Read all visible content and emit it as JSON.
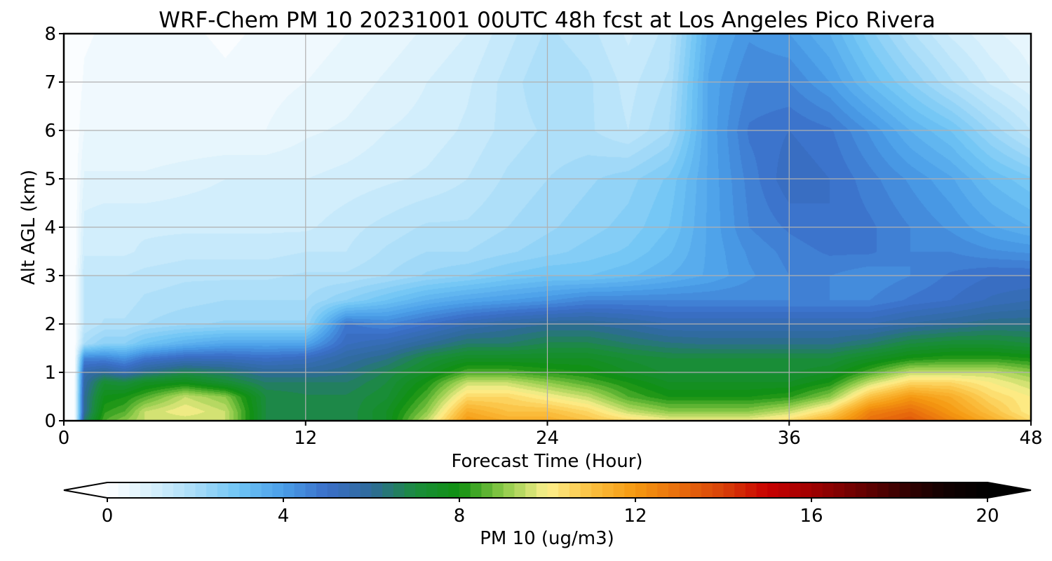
{
  "chart_data": {
    "type": "heatmap",
    "title": "WRF-Chem PM 10  20231001 00UTC 48h fcst at Los Angeles Pico Rivera",
    "xlabel": "Forecast Time (Hour)",
    "ylabel": "Alt AGL (km)",
    "xlim": [
      0,
      48
    ],
    "ylim": [
      0,
      8
    ],
    "x_ticks": [
      "0",
      "12",
      "24",
      "36",
      "48"
    ],
    "y_ticks": [
      "0",
      "1",
      "2",
      "3",
      "4",
      "5",
      "6",
      "7",
      "8"
    ],
    "grid": true,
    "colorbar": {
      "label": "PM 10  (ug/m3)",
      "ticks": [
        "0",
        "4",
        "8",
        "12",
        "16",
        "20"
      ],
      "range": [
        0,
        20
      ],
      "extend": "both",
      "orientation": "horizontal",
      "colors": {
        "0": "#ffffff",
        "1": "#d8f0fc",
        "2": "#a8dcf8",
        "3": "#6ec4f4",
        "4": "#4a9ee8",
        "5": "#3a6ec8",
        "6": "#2e6a9a",
        "7": "#1a8c3c",
        "8": "#109010",
        "9": "#8cca48",
        "10": "#fdf08c",
        "11": "#fbc040",
        "12": "#f59810",
        "13": "#e86c0c",
        "14": "#d84008",
        "15": "#c80000",
        "16": "#a00000",
        "17": "#6e0000",
        "18": "#3a0000",
        "19": "#120000",
        "20": "#000000"
      }
    },
    "hours": [
      0,
      0.5,
      1,
      2,
      3,
      4,
      6,
      8,
      10,
      12,
      14,
      16,
      18,
      20,
      22,
      24,
      26,
      28,
      30,
      32,
      34,
      36,
      38,
      40,
      42,
      44,
      46,
      48
    ],
    "altitudes_km": [
      0,
      0.2,
      0.5,
      0.8,
      1.0,
      1.3,
      1.6,
      2.0,
      2.5,
      3.0,
      3.5,
      4.0,
      5.0,
      6.0,
      7.0,
      8.0
    ],
    "values": [
      [
        0,
        0,
        6.5,
        8.5,
        9.0,
        9.5,
        9.5,
        9.5,
        7.0,
        7.0,
        6.8,
        7.5,
        9.5,
        12.0,
        11.5,
        11.5,
        11.0,
        10.5,
        10.0,
        10.0,
        10.0,
        10.5,
        11.5,
        13.0,
        13.5,
        12.5,
        11.5,
        10.5
      ],
      [
        0,
        0,
        6.0,
        8.2,
        8.5,
        9.5,
        10.0,
        9.5,
        7.0,
        6.8,
        6.8,
        7.5,
        9.0,
        11.5,
        11.0,
        11.0,
        10.5,
        9.5,
        9.0,
        9.0,
        9.0,
        9.5,
        10.5,
        12.5,
        13.0,
        12.0,
        11.0,
        10.0
      ],
      [
        0,
        0,
        6.0,
        7.8,
        8.0,
        8.5,
        9.5,
        9.0,
        7.0,
        6.8,
        6.8,
        7.2,
        8.5,
        10.5,
        10.5,
        10.0,
        9.5,
        8.5,
        8.0,
        8.0,
        8.0,
        8.2,
        9.0,
        11.0,
        12.0,
        11.5,
        10.5,
        10.0
      ],
      [
        0,
        0,
        5.8,
        7.2,
        7.0,
        7.5,
        7.8,
        7.2,
        6.5,
        6.5,
        6.5,
        7.0,
        8.0,
        9.5,
        9.5,
        9.0,
        8.5,
        8.0,
        7.5,
        7.5,
        7.5,
        7.5,
        8.0,
        9.5,
        10.5,
        10.5,
        10.0,
        9.5
      ],
      [
        0,
        0,
        5.6,
        6.0,
        5.6,
        6.2,
        6.8,
        6.5,
        6.0,
        6.0,
        6.2,
        6.8,
        7.5,
        8.5,
        8.5,
        8.2,
        8.0,
        7.5,
        7.2,
        7.2,
        7.2,
        7.2,
        7.5,
        8.5,
        9.5,
        9.5,
        9.5,
        9.0
      ],
      [
        0,
        0,
        4.5,
        4.5,
        4.2,
        4.8,
        5.2,
        5.2,
        5.0,
        5.2,
        5.8,
        6.2,
        7.0,
        7.5,
        7.5,
        7.5,
        7.5,
        7.2,
        7.0,
        7.0,
        7.0,
        7.0,
        7.0,
        7.5,
        8.0,
        8.2,
        8.2,
        8.0
      ],
      [
        0,
        0,
        2.0,
        2.5,
        2.5,
        3.0,
        3.5,
        3.8,
        3.8,
        3.8,
        5.2,
        5.5,
        6.0,
        6.5,
        6.5,
        6.8,
        6.8,
        6.5,
        6.3,
        6.2,
        6.2,
        6.2,
        6.2,
        6.5,
        7.0,
        7.2,
        7.2,
        7.0
      ],
      [
        0,
        0,
        1.5,
        1.8,
        1.8,
        2.0,
        2.2,
        2.3,
        2.3,
        2.3,
        4.8,
        4.5,
        5.0,
        5.5,
        5.8,
        6.0,
        6.0,
        5.8,
        5.5,
        5.5,
        5.5,
        5.5,
        5.5,
        5.5,
        5.8,
        6.0,
        6.2,
        6.2
      ],
      [
        0,
        0,
        1.5,
        1.6,
        1.6,
        1.8,
        1.9,
        2.0,
        2.0,
        2.0,
        2.5,
        3.0,
        3.5,
        3.8,
        4.0,
        4.2,
        4.5,
        4.5,
        4.5,
        4.5,
        4.5,
        4.5,
        4.5,
        4.5,
        4.8,
        5.0,
        5.3,
        5.5
      ],
      [
        0,
        0,
        1.5,
        1.5,
        1.5,
        1.6,
        1.7,
        1.7,
        1.7,
        1.8,
        1.8,
        2.0,
        2.3,
        2.5,
        2.8,
        3.0,
        3.0,
        3.2,
        3.5,
        3.8,
        4.2,
        4.5,
        4.5,
        4.3,
        4.5,
        4.8,
        5.0,
        5.0
      ],
      [
        0,
        0,
        1.2,
        1.2,
        1.2,
        1.3,
        1.4,
        1.4,
        1.4,
        1.5,
        1.5,
        1.8,
        2.0,
        2.0,
        2.2,
        2.4,
        2.6,
        2.8,
        3.2,
        3.8,
        4.3,
        4.6,
        4.8,
        4.8,
        4.5,
        4.5,
        4.3,
        4.2
      ],
      [
        0,
        0,
        1.1,
        1.2,
        1.2,
        1.2,
        1.2,
        1.2,
        1.2,
        1.2,
        1.4,
        1.6,
        1.8,
        1.8,
        2.0,
        2.2,
        2.4,
        2.6,
        3.0,
        3.8,
        4.5,
        4.8,
        5.0,
        4.8,
        4.5,
        4.2,
        3.8,
        3.5
      ],
      [
        0,
        0,
        0.8,
        0.8,
        0.8,
        0.8,
        0.9,
        1.0,
        1.0,
        1.0,
        1.1,
        1.2,
        1.3,
        1.5,
        1.8,
        2.0,
        2.2,
        2.4,
        2.8,
        3.8,
        4.6,
        5.2,
        5.0,
        4.6,
        4.2,
        3.8,
        3.2,
        2.8
      ],
      [
        0,
        0,
        0.5,
        0.5,
        0.5,
        0.5,
        0.5,
        0.5,
        0.5,
        0.7,
        0.8,
        1.0,
        1.1,
        1.3,
        1.6,
        1.8,
        1.8,
        1.5,
        2.0,
        3.8,
        4.8,
        5.0,
        4.8,
        4.2,
        3.5,
        3.0,
        2.2,
        1.5
      ],
      [
        0,
        0,
        0.3,
        0.4,
        0.4,
        0.4,
        0.4,
        0.3,
        0.4,
        0.5,
        0.6,
        0.8,
        1.0,
        1.2,
        1.6,
        2.0,
        1.8,
        1.4,
        1.8,
        3.8,
        4.5,
        4.5,
        4.0,
        3.2,
        2.5,
        1.8,
        1.2,
        0.8
      ],
      [
        0,
        0,
        0.2,
        0.3,
        0.3,
        0.3,
        0.3,
        0.2,
        0.3,
        0.4,
        0.5,
        0.6,
        0.8,
        1.0,
        1.4,
        1.8,
        1.6,
        1.2,
        1.6,
        3.6,
        4.2,
        4.0,
        3.5,
        2.6,
        1.8,
        1.2,
        0.8,
        0.6
      ]
    ]
  }
}
